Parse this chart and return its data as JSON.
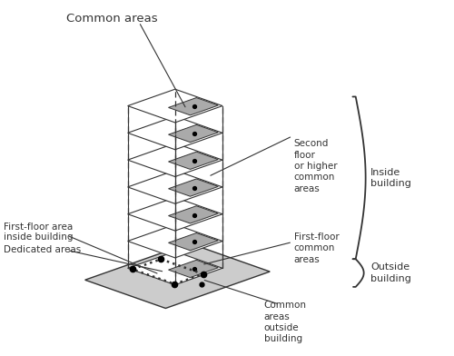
{
  "bg_color": "#ffffff",
  "line_color": "#333333",
  "gray_fill": "#aaaaaa",
  "light_gray_fill": "#cccccc",
  "fig_width": 5.0,
  "fig_height": 3.92,
  "num_floors": 7,
  "labels": {
    "common_areas_top": "Common areas",
    "second_floor": "Second\nfloor\nor higher\ncommon\nareas",
    "inside_building": "Inside\nbuilding",
    "first_floor_area": "First-floor area\ninside building",
    "dedicated_areas": "Dedicated areas",
    "first_floor_common": "First-floor\ncommon\nareas",
    "common_outside": "Common\nareas\noutside\nbuilding",
    "outside_building": "Outside\nbuilding"
  }
}
